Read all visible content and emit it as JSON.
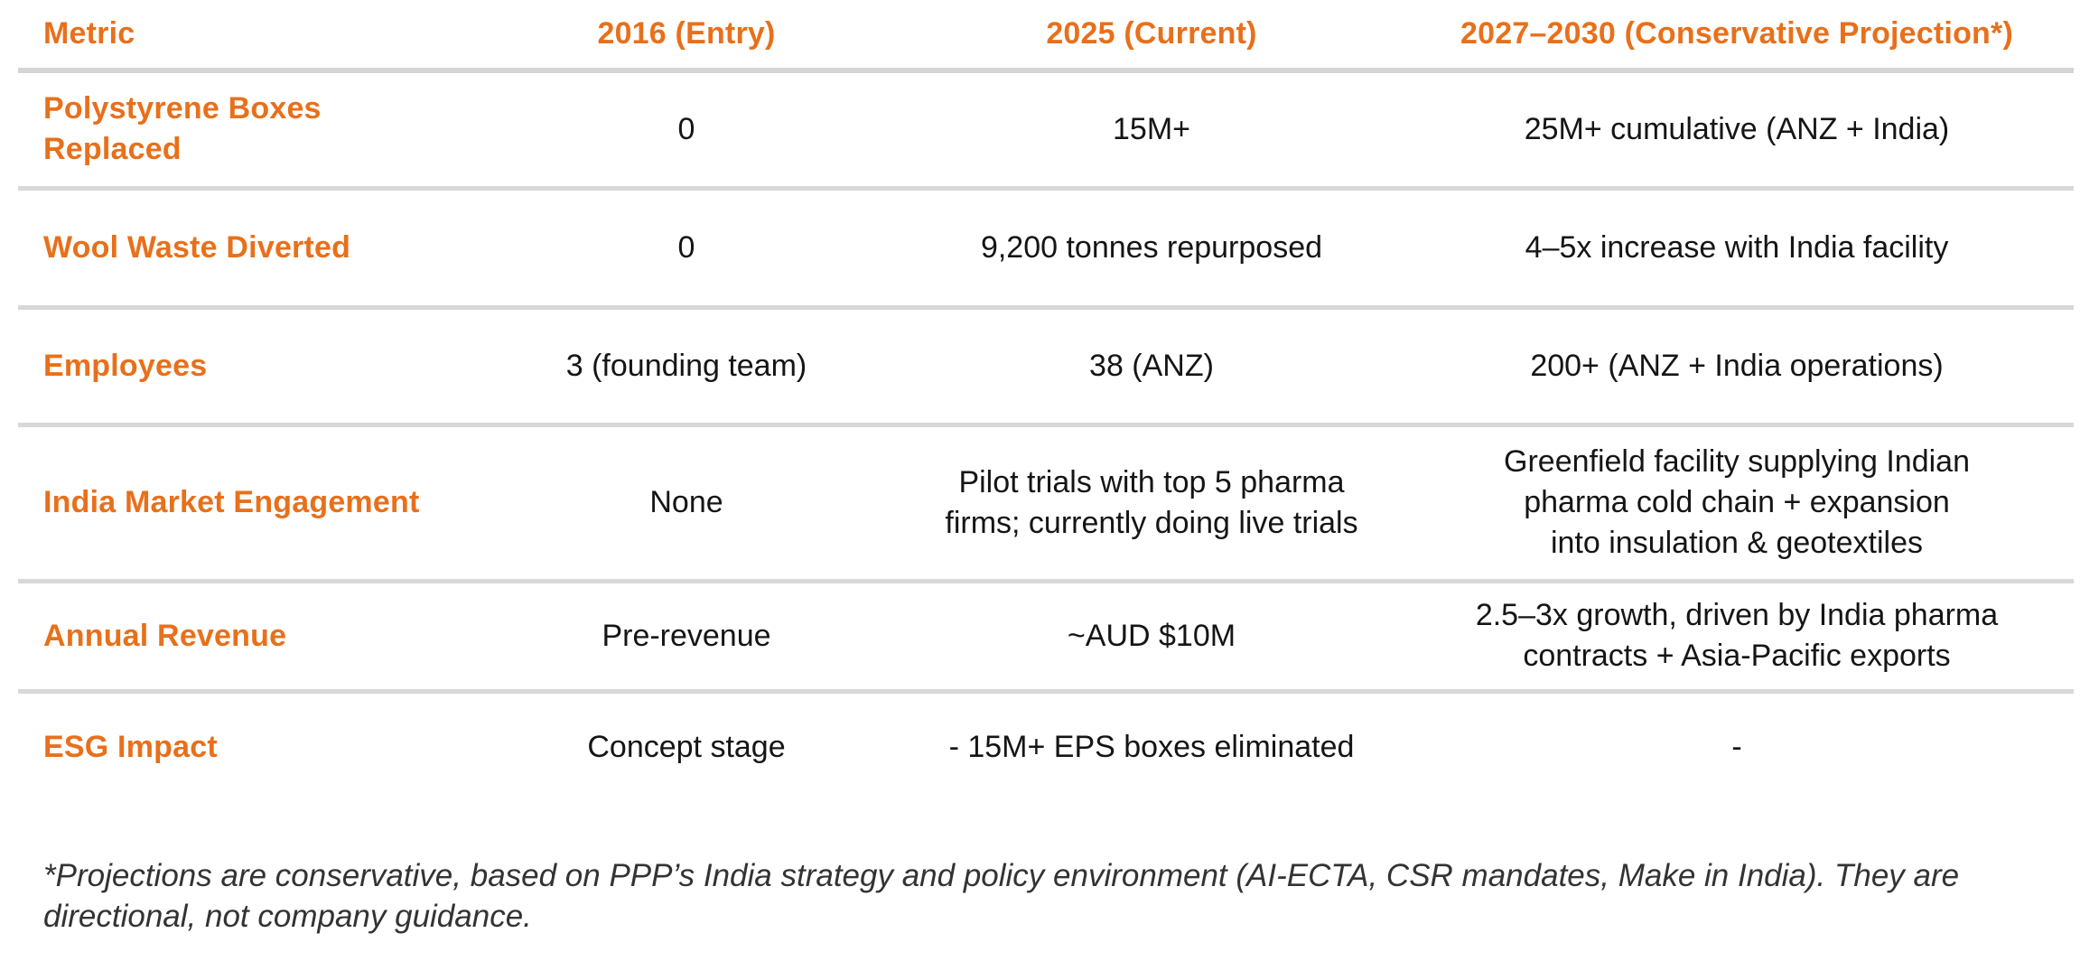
{
  "accent_color": "#E8701B",
  "rule_color": "#D6D6D6",
  "table": {
    "columns": [
      {
        "label": "Metric"
      },
      {
        "label": "2016 (Entry)"
      },
      {
        "label": "2025 (Current)"
      },
      {
        "label": "2027–2030 (Conservative Projection*)"
      }
    ],
    "rows": [
      {
        "metric": "Polystyrene Boxes\nReplaced",
        "entry": "0",
        "current": "15M+",
        "projection": "25M+ cumulative (ANZ + India)"
      },
      {
        "metric": "Wool Waste Diverted",
        "entry": "0",
        "current": "9,200 tonnes repurposed",
        "projection": "4–5x increase with India facility"
      },
      {
        "metric": "Employees",
        "entry": "3 (founding team)",
        "current": "38 (ANZ)",
        "projection": "200+ (ANZ + India operations)"
      },
      {
        "metric": "India Market Engagement",
        "entry": "None",
        "current": "Pilot trials with top 5 pharma\nfirms; currently doing live trials",
        "projection": "Greenfield facility supplying Indian\npharma cold chain + expansion\ninto insulation & geotextiles"
      },
      {
        "metric": "Annual Revenue",
        "entry": "Pre-revenue",
        "current": "~AUD $10M",
        "projection": "2.5–3x growth, driven by India pharma\ncontracts + Asia-Pacific exports"
      },
      {
        "metric": "ESG Impact",
        "entry": "Concept stage",
        "current": "- 15M+ EPS boxes eliminated",
        "projection": "-"
      }
    ]
  },
  "footnote": "*Projections are conservative, based on PPP’s India strategy and policy environment (AI-ECTA, CSR mandates, Make in India). They are\ndirectional, not company guidance."
}
